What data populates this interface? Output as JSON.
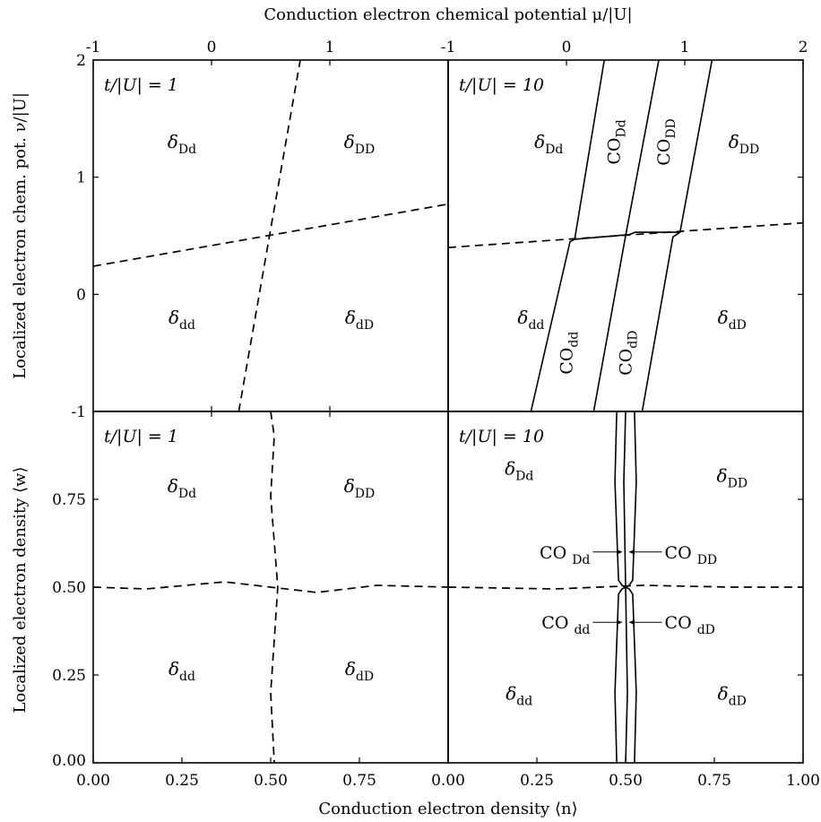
{
  "chart_data": {
    "type": "line",
    "top_axis_label": "Conduction electron chemical potential μ/|U|",
    "bottom_axis_label": "Conduction electron density ⟨n⟩",
    "left_axis_label_top": "Localized electron chem. pot. ν/|U|",
    "left_axis_label_bottom": "Localized electron density ⟨w⟩",
    "top_ticks_left": [
      "-1",
      "0",
      "1"
    ],
    "top_ticks_right": [
      "-1",
      "0",
      "1",
      "2"
    ],
    "y_ticks_top": [
      "2",
      "1",
      "0",
      "-1"
    ],
    "y_ticks_bottom": [
      "0.75",
      "0.50",
      "0.25",
      "0.00"
    ],
    "x_ticks_bottom": [
      "0.00",
      "0.25",
      "0.50",
      "0.75",
      "0.00",
      "0.25",
      "0.50",
      "0.75",
      "1.00"
    ],
    "panels": [
      {
        "id": "top-left",
        "label": "t/|U| = 1",
        "xlim": [
          -1,
          2
        ],
        "ylim": [
          -1,
          2
        ],
        "regions": [
          {
            "name": "δ",
            "sub": "Dd",
            "x": -0.25,
            "y": 1.25
          },
          {
            "name": "δ",
            "sub": "DD",
            "x": 1.25,
            "y": 1.25
          },
          {
            "name": "δ",
            "sub": "dd",
            "x": -0.25,
            "y": -0.25
          },
          {
            "name": "δ",
            "sub": "dD",
            "x": 1.25,
            "y": -0.25
          }
        ],
        "dashed": [
          [
            [
              -1,
              0.24
            ],
            [
              2,
              0.77
            ]
          ],
          [
            [
              0.23,
              -1
            ],
            [
              0.75,
              2
            ]
          ]
        ]
      },
      {
        "id": "top-right",
        "label": "t/|U| = 10",
        "xlim": [
          -1,
          2
        ],
        "ylim": [
          -1,
          2
        ],
        "regions": [
          {
            "name": "δ",
            "sub": "Dd",
            "x": -0.15,
            "y": 1.25
          },
          {
            "name": "δ",
            "sub": "DD",
            "x": 1.5,
            "y": 1.25
          },
          {
            "name": "δ",
            "sub": "dd",
            "x": -0.3,
            "y": -0.25
          },
          {
            "name": "δ",
            "sub": "dD",
            "x": 1.4,
            "y": -0.25
          }
        ],
        "co_labels": [
          {
            "name": "CO",
            "sub": "Dd",
            "x": 0.45,
            "y": 1.3
          },
          {
            "name": "CO",
            "sub": "DD",
            "x": 0.87,
            "y": 1.3
          },
          {
            "name": "CO",
            "sub": "dd",
            "x": 0.05,
            "y": -0.5
          },
          {
            "name": "CO",
            "sub": "dD",
            "x": 0.55,
            "y": -0.5
          }
        ],
        "dashed": [
          [
            [
              -1,
              0.4
            ],
            [
              2,
              0.61
            ]
          ]
        ],
        "solid": [
          [
            [
              -0.3,
              -1
            ],
            [
              0.03,
              0.45
            ],
            [
              0.07,
              0.47
            ],
            [
              0.53,
              0.51
            ]
          ],
          [
            [
              0.53,
              0.51
            ],
            [
              0.58,
              0.53
            ],
            [
              0.96,
              0.53
            ]
          ],
          [
            [
              0.23,
              -1
            ],
            [
              0.5,
              0.5
            ],
            [
              0.78,
              2
            ]
          ],
          [
            [
              0.64,
              -1
            ],
            [
              0.9,
              0.49
            ],
            [
              0.96,
              0.53
            ],
            [
              1.23,
              2
            ]
          ],
          [
            [
              0.07,
              0.47
            ],
            [
              0.32,
              2
            ]
          ]
        ]
      },
      {
        "id": "bottom-left",
        "label": "t/|U| = 1",
        "xlim": [
          0,
          1
        ],
        "ylim": [
          0,
          1
        ],
        "regions": [
          {
            "name": "δ",
            "sub": "Dd",
            "x": 0.25,
            "y": 0.77
          },
          {
            "name": "δ",
            "sub": "DD",
            "x": 0.75,
            "y": 0.77
          },
          {
            "name": "δ",
            "sub": "dd",
            "x": 0.25,
            "y": 0.25
          },
          {
            "name": "δ",
            "sub": "dD",
            "x": 0.75,
            "y": 0.25
          }
        ],
        "dashed": [
          [
            [
              0,
              0.5
            ],
            [
              0.15,
              0.495
            ],
            [
              0.37,
              0.515
            ],
            [
              0.5,
              0.5
            ],
            [
              0.63,
              0.485
            ],
            [
              0.8,
              0.505
            ],
            [
              1,
              0.5
            ]
          ],
          [
            [
              0.5,
              1
            ],
            [
              0.51,
              0.93
            ],
            [
              0.5,
              0.76
            ],
            [
              0.52,
              0.5
            ],
            [
              0.51,
              0.35
            ],
            [
              0.5,
              0.2
            ],
            [
              0.51,
              0
            ]
          ]
        ]
      },
      {
        "id": "bottom-right",
        "label": "t/|U| = 10",
        "xlim": [
          0,
          1
        ],
        "ylim": [
          0,
          1
        ],
        "regions": [
          {
            "name": "δ",
            "sub": "Dd",
            "x": 0.2,
            "y": 0.82
          },
          {
            "name": "δ",
            "sub": "DD",
            "x": 0.8,
            "y": 0.8
          },
          {
            "name": "δ",
            "sub": "dd",
            "x": 0.2,
            "y": 0.18
          },
          {
            "name": "δ",
            "sub": "dD",
            "x": 0.8,
            "y": 0.18
          }
        ],
        "co_labels": [
          {
            "name": "CO",
            "sub": "Dd",
            "x": 0.4,
            "y": 0.6
          },
          {
            "name": "CO",
            "sub": "DD",
            "x": 0.61,
            "y": 0.6
          },
          {
            "name": "CO",
            "sub": "dd",
            "x": 0.4,
            "y": 0.4
          },
          {
            "name": "CO",
            "sub": "dD",
            "x": 0.61,
            "y": 0.4
          }
        ],
        "dashed": [
          [
            [
              0,
              0.5
            ],
            [
              0.3,
              0.495
            ],
            [
              0.55,
              0.505
            ],
            [
              0.8,
              0.5
            ],
            [
              1,
              0.5
            ]
          ]
        ],
        "solid": [
          [
            [
              0.475,
              1
            ],
            [
              0.47,
              0.8
            ],
            [
              0.48,
              0.52
            ],
            [
              0.49,
              0.505
            ],
            [
              0.5,
              0.5
            ],
            [
              0.49,
              0.495
            ],
            [
              0.48,
              0.48
            ],
            [
              0.47,
              0.2
            ],
            [
              0.475,
              0
            ]
          ],
          [
            [
              0.5,
              1
            ],
            [
              0.495,
              0.8
            ],
            [
              0.5,
              0.5
            ],
            [
              0.505,
              0.2
            ],
            [
              0.5,
              0
            ]
          ],
          [
            [
              0.525,
              1
            ],
            [
              0.53,
              0.8
            ],
            [
              0.52,
              0.52
            ],
            [
              0.51,
              0.505
            ],
            [
              0.5,
              0.5
            ],
            [
              0.51,
              0.495
            ],
            [
              0.52,
              0.48
            ],
            [
              0.53,
              0.2
            ],
            [
              0.525,
              0
            ]
          ]
        ],
        "arrows": [
          {
            "label": "Dd",
            "y": 0.6,
            "dir": "right"
          },
          {
            "label": "DD",
            "y": 0.6,
            "dir": "left"
          },
          {
            "label": "dd",
            "y": 0.4,
            "dir": "right"
          },
          {
            "label": "dD",
            "y": 0.4,
            "dir": "left"
          }
        ]
      }
    ]
  }
}
